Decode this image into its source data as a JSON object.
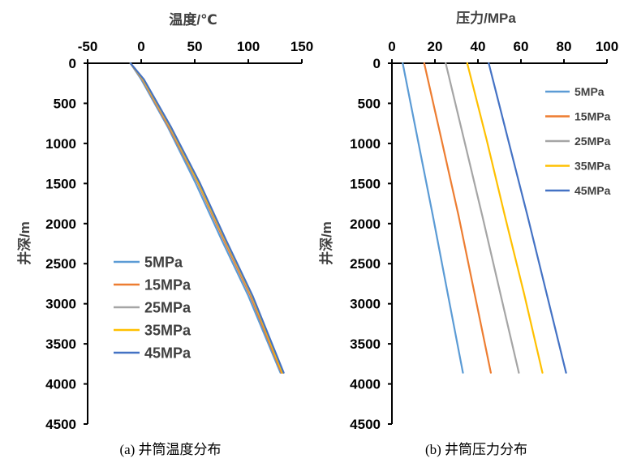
{
  "chart_data": [
    {
      "type": "line",
      "id": "temperature",
      "title": "",
      "caption": "(a)  井筒温度分布",
      "xlabel": "温度/℃",
      "ylabel": "井深/m",
      "xlim": [
        -50,
        150
      ],
      "ylim": [
        0,
        4500
      ],
      "x_ticks": [
        -50,
        0,
        50,
        100,
        150
      ],
      "y_ticks": [
        0,
        500,
        1000,
        1500,
        2000,
        2500,
        3000,
        3500,
        4000,
        4500
      ],
      "y_inverted": true,
      "x_axis_position": "top",
      "grid": false,
      "legend_position": "center-left",
      "series": [
        {
          "name": "5MPa",
          "color": "#5B9BD5",
          "x": [
            -10,
            0,
            25,
            51,
            75,
            100,
            130
          ],
          "y": [
            0,
            200,
            800,
            1500,
            2200,
            2900,
            3860
          ]
        },
        {
          "name": "15MPa",
          "color": "#ED7D31",
          "x": [
            -10,
            1,
            26,
            53,
            77,
            102,
            131
          ],
          "y": [
            0,
            200,
            800,
            1500,
            2200,
            2900,
            3860
          ]
        },
        {
          "name": "25MPa",
          "color": "#A5A5A5",
          "x": [
            -10,
            1.5,
            27,
            53.5,
            78,
            103,
            132
          ],
          "y": [
            0,
            200,
            800,
            1500,
            2200,
            2900,
            3860
          ]
        },
        {
          "name": "35MPa",
          "color": "#FFC000",
          "x": [
            -10,
            2,
            27.5,
            54,
            78.5,
            103.5,
            132
          ],
          "y": [
            0,
            200,
            800,
            1500,
            2200,
            2900,
            3860
          ]
        },
        {
          "name": "45MPa",
          "color": "#4472C4",
          "x": [
            -10,
            2.5,
            28,
            55,
            79,
            104,
            133
          ],
          "y": [
            0,
            200,
            800,
            1500,
            2200,
            2900,
            3860
          ]
        }
      ]
    },
    {
      "type": "line",
      "id": "pressure",
      "title": "",
      "caption": "(b)  井筒压力分布",
      "xlabel": "压力/MPa",
      "ylabel": "井深/m",
      "xlim": [
        0,
        100
      ],
      "ylim": [
        0,
        4500
      ],
      "x_ticks": [
        0,
        20,
        40,
        60,
        80,
        100
      ],
      "y_ticks": [
        0,
        500,
        1000,
        1500,
        2000,
        2500,
        3000,
        3500,
        4000,
        4500
      ],
      "y_inverted": true,
      "x_axis_position": "top",
      "grid": false,
      "legend_position": "top-right",
      "series": [
        {
          "name": "5MPa",
          "color": "#5B9BD5",
          "x": [
            5,
            12,
            19,
            26,
            33
          ],
          "y": [
            0,
            950,
            1900,
            2880,
            3860
          ]
        },
        {
          "name": "15MPa",
          "color": "#ED7D31",
          "x": [
            15,
            23,
            31,
            38.5,
            46
          ],
          "y": [
            0,
            950,
            1900,
            2880,
            3860
          ]
        },
        {
          "name": "25MPa",
          "color": "#A5A5A5",
          "x": [
            25,
            33.5,
            42,
            50.5,
            59
          ],
          "y": [
            0,
            950,
            1900,
            2880,
            3860
          ]
        },
        {
          "name": "35MPa",
          "color": "#FFC000",
          "x": [
            35,
            44,
            52.5,
            61.5,
            70
          ],
          "y": [
            0,
            950,
            1900,
            2880,
            3860
          ]
        },
        {
          "name": "45MPa",
          "color": "#4472C4",
          "x": [
            45,
            54,
            63,
            72,
            81
          ],
          "y": [
            0,
            950,
            1900,
            2880,
            3860
          ]
        }
      ]
    }
  ]
}
